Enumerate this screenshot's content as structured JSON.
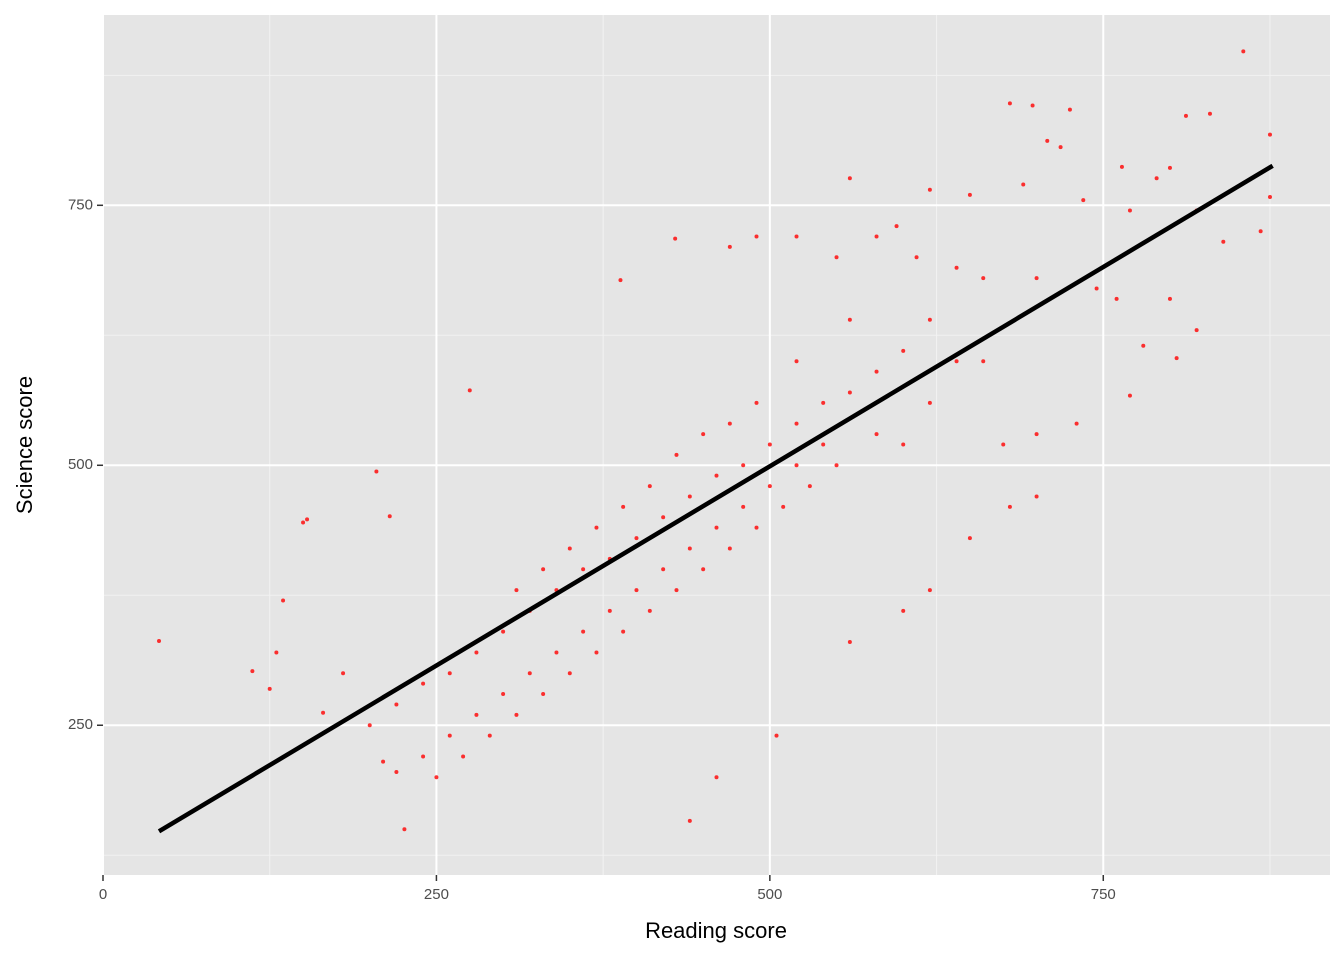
{
  "chart_data": {
    "type": "scatter",
    "x_label": "Reading score",
    "y_label": "Science score",
    "color": "#ff0000",
    "x": [
      42,
      855,
      680,
      697,
      725,
      830,
      812,
      875,
      708,
      718,
      764,
      790,
      800,
      560,
      620,
      650,
      690,
      735,
      770,
      820,
      875,
      868,
      840,
      595,
      580,
      520,
      490,
      470,
      550,
      610,
      640,
      660,
      700,
      745,
      760,
      800,
      820,
      780,
      805,
      770,
      730,
      700,
      675,
      640,
      620,
      600,
      580,
      560,
      540,
      520,
      500,
      480,
      460,
      440,
      420,
      400,
      380,
      360,
      340,
      320,
      300,
      280,
      260,
      240,
      220,
      200,
      180,
      150,
      153,
      205,
      215,
      275,
      388,
      429,
      560,
      520,
      490,
      470,
      450,
      430,
      410,
      390,
      370,
      350,
      330,
      310,
      550,
      530,
      510,
      490,
      470,
      450,
      430,
      410,
      390,
      370,
      350,
      330,
      310,
      290,
      270,
      250,
      226,
      440,
      460,
      505,
      560,
      600,
      620,
      650,
      680,
      700,
      600,
      620,
      660,
      580,
      540,
      520,
      500,
      480,
      460,
      440,
      420,
      400,
      380,
      360,
      340,
      320,
      300,
      280,
      260,
      240,
      130,
      125,
      112,
      135,
      165,
      210,
      220
    ],
    "values": [
      331,
      898,
      848,
      846,
      842,
      838,
      836,
      818,
      812,
      806,
      787,
      776,
      786,
      776,
      765,
      760,
      770,
      755,
      745,
      745,
      758,
      725,
      715,
      730,
      720,
      720,
      720,
      710,
      700,
      700,
      690,
      680,
      680,
      670,
      660,
      660,
      630,
      615,
      603,
      567,
      540,
      530,
      520,
      600,
      640,
      610,
      590,
      570,
      560,
      540,
      520,
      500,
      490,
      470,
      450,
      430,
      410,
      400,
      380,
      360,
      340,
      320,
      300,
      290,
      270,
      250,
      300,
      445,
      448,
      494,
      451,
      572,
      678,
      718,
      640,
      600,
      560,
      540,
      530,
      510,
      480,
      460,
      440,
      420,
      400,
      380,
      500,
      480,
      460,
      440,
      420,
      400,
      380,
      360,
      340,
      320,
      300,
      280,
      260,
      240,
      220,
      200,
      150,
      158,
      200,
      240,
      330,
      360,
      380,
      430,
      460,
      470,
      520,
      560,
      600,
      530,
      520,
      500,
      480,
      460,
      440,
      420,
      400,
      380,
      360,
      340,
      320,
      300,
      280,
      260,
      240,
      220,
      320,
      285,
      302,
      370,
      262,
      215,
      205
    ],
    "fit": {
      "x": [
        42,
        877
      ],
      "y": [
        148,
        788
      ],
      "color": "#000000"
    },
    "xlim": [
      0,
      920
    ],
    "ylim": [
      106,
      933
    ],
    "xticks": [
      0,
      250,
      500,
      750
    ],
    "yticks": [
      250,
      500,
      750
    ],
    "minor_xticks": [
      125,
      375,
      625,
      875
    ],
    "minor_yticks": [
      125,
      375,
      625,
      875
    ],
    "grid": true
  }
}
